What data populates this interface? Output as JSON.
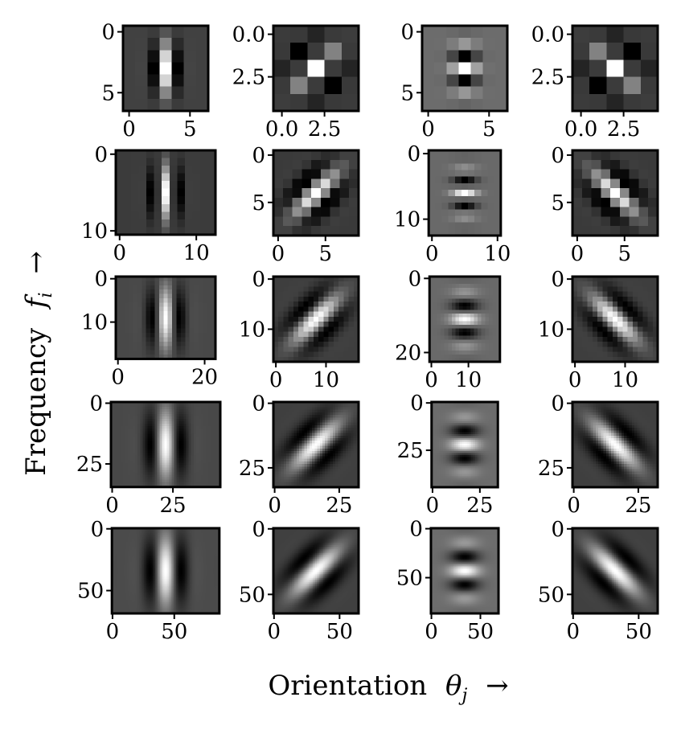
{
  "figure": {
    "xlabel": "Orientation $\\theta_j$ $\\rightarrow$",
    "ylabel": "Frequency $f_i$ $\\rightarrow$",
    "xlabel_parts": {
      "word": "Orientation",
      "symbol": "θ",
      "sub": "j",
      "arrow": "→"
    },
    "ylabel_parts": {
      "word": "Frequency",
      "symbol": "f",
      "sub": "i",
      "arrow": "→"
    }
  },
  "chart_data": [
    {
      "type": "heatmap",
      "row": 0,
      "col": 0,
      "colormap": "gray",
      "nx": 7,
      "ny": 7,
      "xticks": [
        0,
        5
      ],
      "yticks": [
        0,
        5
      ],
      "xlim": [
        -0.5,
        6.5
      ],
      "ylim": [
        6.5,
        -0.5
      ],
      "kernel": {
        "sx": 0.7,
        "sy": 1.4,
        "freq": 0.45,
        "angle": 0
      }
    },
    {
      "type": "heatmap",
      "row": 0,
      "col": 1,
      "colormap": "gray",
      "nx": 5,
      "ny": 5,
      "xticks": [
        0.0,
        2.5
      ],
      "yticks": [
        0.0,
        2.5
      ],
      "xlim": [
        -0.5,
        4.5
      ],
      "ylim": [
        4.5,
        -0.5
      ],
      "kernel": {
        "sx": 0.9,
        "sy": 1.0,
        "freq": 0.35,
        "angle": 45
      }
    },
    {
      "type": "heatmap",
      "row": 0,
      "col": 2,
      "colormap": "gray",
      "nx": 7,
      "ny": 7,
      "xticks": [
        0,
        5
      ],
      "yticks": [
        0,
        5
      ],
      "xlim": [
        -0.5,
        6.5
      ],
      "ylim": [
        6.5,
        -0.5
      ],
      "kernel": {
        "sx": 1.4,
        "sy": 0.7,
        "freq": 0.45,
        "angle": 90
      }
    },
    {
      "type": "heatmap",
      "row": 0,
      "col": 3,
      "colormap": "gray",
      "nx": 5,
      "ny": 5,
      "xticks": [
        0.0,
        2.5
      ],
      "yticks": [
        0.0,
        2.5
      ],
      "xlim": [
        -0.5,
        4.5
      ],
      "ylim": [
        4.5,
        -0.5
      ],
      "kernel": {
        "sx": 0.9,
        "sy": 1.0,
        "freq": 0.35,
        "angle": 135
      }
    },
    {
      "type": "heatmap",
      "row": 1,
      "col": 0,
      "colormap": "gray",
      "nx": 13,
      "ny": 11,
      "xticks": [
        0,
        10
      ],
      "yticks": [
        0,
        10
      ],
      "xlim": [
        -0.5,
        12.5
      ],
      "ylim": [
        10.5,
        -0.5
      ],
      "kernel": {
        "sx": 1.3,
        "sy": 2.4,
        "freq": 0.26,
        "angle": 0
      }
    },
    {
      "type": "heatmap",
      "row": 1,
      "col": 1,
      "colormap": "gray",
      "nx": 9,
      "ny": 9,
      "xticks": [
        0,
        5
      ],
      "yticks": [
        0,
        5
      ],
      "xlim": [
        -0.5,
        8.5
      ],
      "ylim": [
        8.5,
        -0.5
      ],
      "kernel": {
        "sx": 1.3,
        "sy": 2.2,
        "freq": 0.24,
        "angle": 45
      }
    },
    {
      "type": "heatmap",
      "row": 1,
      "col": 2,
      "colormap": "gray",
      "nx": 11,
      "ny": 13,
      "xticks": [
        0,
        10
      ],
      "yticks": [
        0,
        10
      ],
      "xlim": [
        -0.5,
        10.5
      ],
      "ylim": [
        12.5,
        -0.5
      ],
      "kernel": {
        "sx": 2.4,
        "sy": 1.3,
        "freq": 0.26,
        "angle": 90
      }
    },
    {
      "type": "heatmap",
      "row": 1,
      "col": 3,
      "colormap": "gray",
      "nx": 9,
      "ny": 9,
      "xticks": [
        0,
        5
      ],
      "yticks": [
        0,
        5
      ],
      "xlim": [
        -0.5,
        8.5
      ],
      "ylim": [
        8.5,
        -0.5
      ],
      "kernel": {
        "sx": 1.3,
        "sy": 2.2,
        "freq": 0.24,
        "angle": 135
      }
    },
    {
      "type": "heatmap",
      "row": 2,
      "col": 0,
      "colormap": "gray",
      "nx": 23,
      "ny": 19,
      "xticks": [
        0,
        20
      ],
      "yticks": [
        0,
        10
      ],
      "xlim": [
        -0.5,
        22.5
      ],
      "ylim": [
        18.5,
        -0.5
      ],
      "kernel": {
        "sx": 2.6,
        "sy": 4.8,
        "freq": 0.13,
        "angle": 0
      }
    },
    {
      "type": "heatmap",
      "row": 2,
      "col": 1,
      "colormap": "gray",
      "nx": 17,
      "ny": 17,
      "xticks": [
        0,
        10
      ],
      "yticks": [
        0,
        10
      ],
      "xlim": [
        -0.5,
        16.5
      ],
      "ylim": [
        16.5,
        -0.5
      ],
      "kernel": {
        "sx": 2.5,
        "sy": 4.3,
        "freq": 0.12,
        "angle": 45
      }
    },
    {
      "type": "heatmap",
      "row": 2,
      "col": 2,
      "colormap": "gray",
      "nx": 19,
      "ny": 23,
      "xticks": [
        0,
        10
      ],
      "yticks": [
        0,
        20
      ],
      "xlim": [
        -0.5,
        18.5
      ],
      "ylim": [
        22.5,
        -0.5
      ],
      "kernel": {
        "sx": 4.8,
        "sy": 2.6,
        "freq": 0.13,
        "angle": 90
      }
    },
    {
      "type": "heatmap",
      "row": 2,
      "col": 3,
      "colormap": "gray",
      "nx": 17,
      "ny": 17,
      "xticks": [
        0,
        10
      ],
      "yticks": [
        0,
        10
      ],
      "xlim": [
        -0.5,
        16.5
      ],
      "ylim": [
        16.5,
        -0.5
      ],
      "kernel": {
        "sx": 2.5,
        "sy": 4.3,
        "freq": 0.12,
        "angle": 135
      }
    },
    {
      "type": "heatmap",
      "row": 3,
      "col": 0,
      "colormap": "gray",
      "nx": 45,
      "ny": 35,
      "xticks": [
        0,
        25
      ],
      "yticks": [
        0,
        25
      ],
      "xlim": [
        -0.5,
        44.5
      ],
      "ylim": [
        34.5,
        -0.5
      ],
      "kernel": {
        "sx": 5.2,
        "sy": 9.5,
        "freq": 0.065,
        "angle": 0
      }
    },
    {
      "type": "heatmap",
      "row": 3,
      "col": 1,
      "colormap": "gray",
      "nx": 33,
      "ny": 33,
      "xticks": [
        0,
        25
      ],
      "yticks": [
        0,
        25
      ],
      "xlim": [
        -0.5,
        32.5
      ],
      "ylim": [
        32.5,
        -0.5
      ],
      "kernel": {
        "sx": 5.0,
        "sy": 8.6,
        "freq": 0.06,
        "angle": 45
      }
    },
    {
      "type": "heatmap",
      "row": 3,
      "col": 2,
      "colormap": "gray",
      "nx": 35,
      "ny": 45,
      "xticks": [
        0,
        25
      ],
      "yticks": [
        0,
        25
      ],
      "xlim": [
        -0.5,
        34.5
      ],
      "ylim": [
        44.5,
        -0.5
      ],
      "kernel": {
        "sx": 9.5,
        "sy": 5.2,
        "freq": 0.065,
        "angle": 90
      }
    },
    {
      "type": "heatmap",
      "row": 3,
      "col": 3,
      "colormap": "gray",
      "nx": 33,
      "ny": 33,
      "xticks": [
        0,
        25
      ],
      "yticks": [
        0,
        25
      ],
      "xlim": [
        -0.5,
        32.5
      ],
      "ylim": [
        32.5,
        -0.5
      ],
      "kernel": {
        "sx": 5.0,
        "sy": 8.6,
        "freq": 0.06,
        "angle": 135
      }
    },
    {
      "type": "heatmap",
      "row": 4,
      "col": 0,
      "colormap": "gray",
      "nx": 87,
      "ny": 69,
      "xticks": [
        0,
        50
      ],
      "yticks": [
        0,
        50
      ],
      "xlim": [
        -0.5,
        86.5
      ],
      "ylim": [
        68.5,
        -0.5
      ],
      "kernel": {
        "sx": 10.4,
        "sy": 19,
        "freq": 0.033,
        "angle": 0
      }
    },
    {
      "type": "heatmap",
      "row": 4,
      "col": 1,
      "colormap": "gray",
      "nx": 65,
      "ny": 65,
      "xticks": [
        0,
        50
      ],
      "yticks": [
        0,
        50
      ],
      "xlim": [
        -0.5,
        64.5
      ],
      "ylim": [
        64.5,
        -0.5
      ],
      "kernel": {
        "sx": 10,
        "sy": 17,
        "freq": 0.03,
        "angle": 45
      }
    },
    {
      "type": "heatmap",
      "row": 4,
      "col": 2,
      "colormap": "gray",
      "nx": 69,
      "ny": 87,
      "xticks": [
        0,
        50
      ],
      "yticks": [
        0,
        50
      ],
      "xlim": [
        -0.5,
        68.5
      ],
      "ylim": [
        86.5,
        -0.5
      ],
      "kernel": {
        "sx": 19,
        "sy": 10.4,
        "freq": 0.033,
        "angle": 90
      }
    },
    {
      "type": "heatmap",
      "row": 4,
      "col": 3,
      "colormap": "gray",
      "nx": 65,
      "ny": 65,
      "xticks": [
        0,
        50
      ],
      "yticks": [
        0,
        50
      ],
      "xlim": [
        -0.5,
        64.5
      ],
      "ylim": [
        64.5,
        -0.5
      ],
      "kernel": {
        "sx": 10,
        "sy": 17,
        "freq": 0.03,
        "angle": 135
      }
    }
  ]
}
